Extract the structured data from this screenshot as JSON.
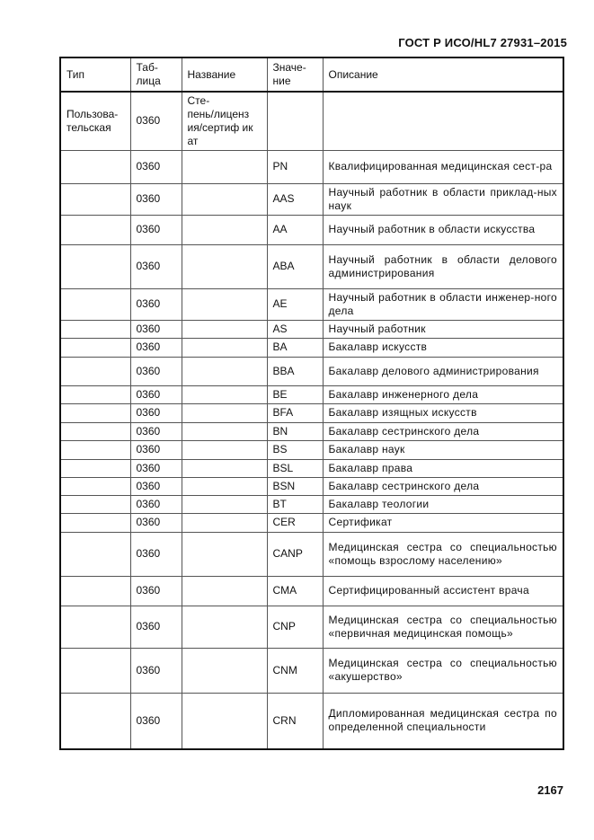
{
  "header": {
    "doc_id": "ГОСТ Р ИСО/HL7 27931–2015"
  },
  "footer": {
    "page_number": "2167"
  },
  "table": {
    "columns": [
      "Тип",
      "Таб-\nлица",
      "Название",
      "Значе-\nние",
      "Описание"
    ],
    "rows": [
      {
        "type": "Пользова-\nтельская",
        "table": "0360",
        "name": "Сте-\nпень/лиценз\nия/сертиф ик\nат",
        "value": "",
        "description": ""
      },
      {
        "type": "",
        "table": "0360",
        "name": "",
        "value": "PN",
        "description": "Квалифицированная медицинская сест-ра"
      },
      {
        "type": "",
        "table": "0360",
        "name": "",
        "value": "AAS",
        "description": "Научный работник в области приклад-ных наук"
      },
      {
        "type": "",
        "table": "0360",
        "name": "",
        "value": "AA",
        "description": "Научный работник в области искусства"
      },
      {
        "type": "",
        "table": "0360",
        "name": "",
        "value": "ABA",
        "description": "Научный работник в области делового администрирования"
      },
      {
        "type": "",
        "table": "0360",
        "name": "",
        "value": "AE",
        "description": "Научный работник в области инженер-ного дела"
      },
      {
        "type": "",
        "table": "0360",
        "name": "",
        "value": "AS",
        "description": "Научный работник"
      },
      {
        "type": "",
        "table": "0360",
        "name": "",
        "value": "BA",
        "description": "Бакалавр искусств"
      },
      {
        "type": "",
        "table": "0360",
        "name": "",
        "value": "BBA",
        "description": "Бакалавр делового администрирования"
      },
      {
        "type": "",
        "table": "0360",
        "name": "",
        "value": "BE",
        "description": "Бакалавр инженерного дела"
      },
      {
        "type": "",
        "table": "0360",
        "name": "",
        "value": "BFA",
        "description": "Бакалавр изящных искусств"
      },
      {
        "type": "",
        "table": "0360",
        "name": "",
        "value": "BN",
        "description": "Бакалавр сестринского дела"
      },
      {
        "type": "",
        "table": "0360",
        "name": "",
        "value": "BS",
        "description": "Бакалавр наук"
      },
      {
        "type": "",
        "table": "0360",
        "name": "",
        "value": "BSL",
        "description": "Бакалавр права"
      },
      {
        "type": "",
        "table": "0360",
        "name": "",
        "value": "BSN",
        "description": "Бакалавр сестринского дела"
      },
      {
        "type": "",
        "table": "0360",
        "name": "",
        "value": "BT",
        "description": "Бакалавр теологии"
      },
      {
        "type": "",
        "table": "0360",
        "name": "",
        "value": "CER",
        "description": "Сертификат"
      },
      {
        "type": "",
        "table": "0360",
        "name": "",
        "value": "CANP",
        "description": "Медицинская сестра со специальностью «помощь взрослому населению»"
      },
      {
        "type": "",
        "table": "0360",
        "name": "",
        "value": "CMA",
        "description": "Сертифицированный ассистент врача"
      },
      {
        "type": "",
        "table": "0360",
        "name": "",
        "value": "CNP",
        "description": "Медицинская сестра со специальностью «первичная медицинская помощь»"
      },
      {
        "type": "",
        "table": "0360",
        "name": "",
        "value": "CNM",
        "description": "Медицинская сестра со специальностью «акушерство»"
      },
      {
        "type": "",
        "table": "0360",
        "name": "",
        "value": "CRN",
        "description": "Дипломированная медицинская сестра по определенной специальности"
      }
    ]
  }
}
